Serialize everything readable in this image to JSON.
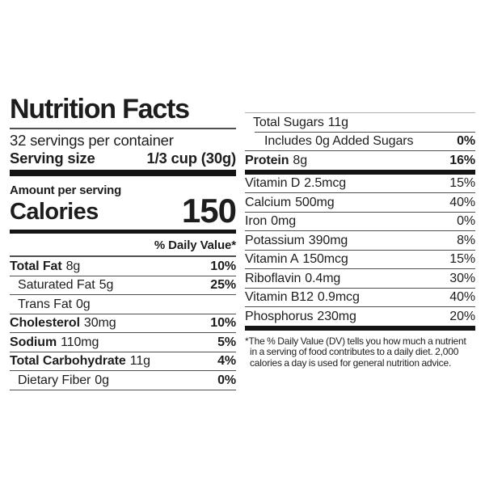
{
  "label": {
    "title": "Nutrition Facts",
    "servings_per_container": "32 servings per container",
    "serving_size_label": "Serving size",
    "serving_size_value": "1/3 cup (30g)",
    "amount_per_serving_label": "Amount per serving",
    "calories_label": "Calories",
    "calories_value": "150",
    "daily_value_header": "% Daily Value*",
    "left_rows": [
      {
        "name": "Total Fat",
        "amount": "8g",
        "dv": "10%",
        "level": 0,
        "name_bold": true,
        "dv_bold": true,
        "sep": "thin"
      },
      {
        "name": "Saturated Fat",
        "amount": "5g",
        "dv": "25%",
        "level": 1,
        "name_bold": false,
        "dv_bold": true,
        "sep": "thin"
      },
      {
        "name": "Trans Fat",
        "amount": "0g",
        "dv": "",
        "level": 1,
        "name_bold": false,
        "dv_bold": false,
        "sep": "thin"
      },
      {
        "name": "Cholesterol",
        "amount": "30mg",
        "dv": "10%",
        "level": 0,
        "name_bold": true,
        "dv_bold": true,
        "sep": "thin"
      },
      {
        "name": "Sodium",
        "amount": "110mg",
        "dv": "5%",
        "level": 0,
        "name_bold": true,
        "dv_bold": true,
        "sep": "thin"
      },
      {
        "name": "Total Carbohydrate",
        "amount": "11g",
        "dv": "4%",
        "level": 0,
        "name_bold": true,
        "dv_bold": true,
        "sep": "thin"
      },
      {
        "name": "Dietary Fiber",
        "amount": "0g",
        "dv": "0%",
        "level": 1,
        "name_bold": false,
        "dv_bold": true,
        "sep": "thin"
      }
    ],
    "right_rows": [
      {
        "name": "Total Sugars",
        "amount": "11g",
        "dv": "",
        "level": 1,
        "name_bold": false,
        "dv_bold": false,
        "sep": "indent"
      },
      {
        "name": "Includes 0g Added Sugars",
        "amount": "",
        "dv": "0%",
        "level": 2,
        "name_bold": false,
        "dv_bold": true,
        "sep": "thin"
      },
      {
        "name": "Protein",
        "amount": "8g",
        "dv": "16%",
        "level": 0,
        "name_bold": true,
        "dv_bold": true,
        "sep": "thick"
      },
      {
        "name": "Vitamin D",
        "amount": "2.5mcg",
        "dv": "15%",
        "level": 0,
        "name_bold": false,
        "dv_bold": false,
        "sep": "thin"
      },
      {
        "name": "Calcium",
        "amount": "500mg",
        "dv": "40%",
        "level": 0,
        "name_bold": false,
        "dv_bold": false,
        "sep": "thin"
      },
      {
        "name": "Iron",
        "amount": "0mg",
        "dv": "0%",
        "level": 0,
        "name_bold": false,
        "dv_bold": false,
        "sep": "thin"
      },
      {
        "name": "Potassium",
        "amount": "390mg",
        "dv": "8%",
        "level": 0,
        "name_bold": false,
        "dv_bold": false,
        "sep": "thin"
      },
      {
        "name": "Vitamin A",
        "amount": "150mcg",
        "dv": "15%",
        "level": 0,
        "name_bold": false,
        "dv_bold": false,
        "sep": "thin"
      },
      {
        "name": "Riboflavin",
        "amount": "0.4mg",
        "dv": "30%",
        "level": 0,
        "name_bold": false,
        "dv_bold": false,
        "sep": "thin"
      },
      {
        "name": "Vitamin B12",
        "amount": "0.9mcg",
        "dv": "40%",
        "level": 0,
        "name_bold": false,
        "dv_bold": false,
        "sep": "thin"
      },
      {
        "name": "Phosphorus",
        "amount": "230mg",
        "dv": "20%",
        "level": 0,
        "name_bold": false,
        "dv_bold": false,
        "sep": "thick"
      }
    ],
    "footnote": "*The % Daily Value (DV) tells you how much a nutrient in a serving of food contributes to a daily diet. 2,000 calories a day is used for general nutrition advice."
  }
}
